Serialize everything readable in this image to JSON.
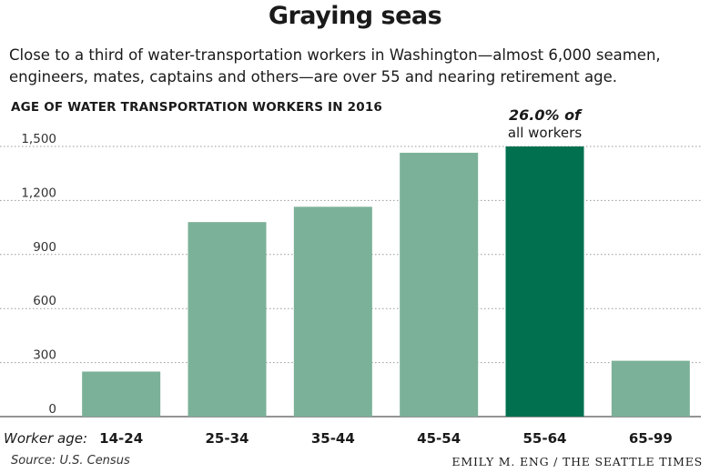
{
  "title": "Graying seas",
  "subtitle": "Close to a third of water-transportation workers in Washington—almost 6,000 seamen, engineers, mates, captains and others—are over 55 and nearing retirement age.",
  "source": "Source: U.S. Census",
  "credit": "EMILY M. ENG / THE SEATTLE TIMES",
  "chart_data": {
    "type": "bar",
    "title": "AGE OF WATER TRANSPORTATION WORKERS IN 2016",
    "xlabel": "Worker age:",
    "ylabel": "",
    "categories": [
      "14-24",
      "25-34",
      "35-44",
      "45-54",
      "55-64",
      "65-99"
    ],
    "values": [
      250,
      1080,
      1165,
      1465,
      1500,
      310
    ],
    "ylim": [
      0,
      1500
    ],
    "yticks": [
      0,
      300,
      600,
      900,
      1200,
      1500
    ],
    "ytick_labels": [
      "0",
      "300",
      "600",
      "900",
      "1,200",
      "1,500"
    ],
    "grid": true,
    "colors": {
      "bar": "#7bb198",
      "highlight": "#00704f",
      "grid": "#999999"
    },
    "highlight_index": 4,
    "annotation": {
      "line1": "26.0% of",
      "line2": "all workers"
    }
  }
}
